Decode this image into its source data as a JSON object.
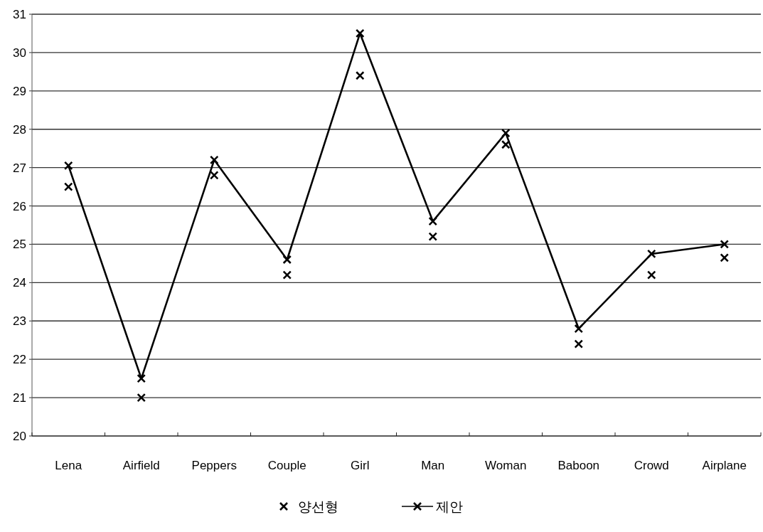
{
  "chart_data": {
    "type": "line",
    "categories": [
      "Lena",
      "Airfield",
      "Peppers",
      "Couple",
      "Girl",
      "Man",
      "Woman",
      "Baboon",
      "Crowd",
      "Airplane"
    ],
    "series": [
      {
        "name": "양선형",
        "type": "scatter",
        "marker": "cross",
        "color": "#000000",
        "values": [
          26.5,
          21.0,
          26.8,
          24.2,
          29.4,
          25.2,
          27.6,
          22.4,
          24.2,
          24.65
        ]
      },
      {
        "name": "제안",
        "marker": "cross",
        "color": "#000000",
        "values": [
          27.05,
          21.5,
          27.2,
          24.6,
          30.5,
          25.6,
          27.9,
          22.8,
          24.75,
          25.0
        ]
      }
    ],
    "ylim": [
      20,
      31
    ],
    "yticks": [
      20,
      21,
      22,
      23,
      24,
      25,
      26,
      27,
      28,
      29,
      30,
      31
    ],
    "grid": "y",
    "legend": "bottom"
  }
}
